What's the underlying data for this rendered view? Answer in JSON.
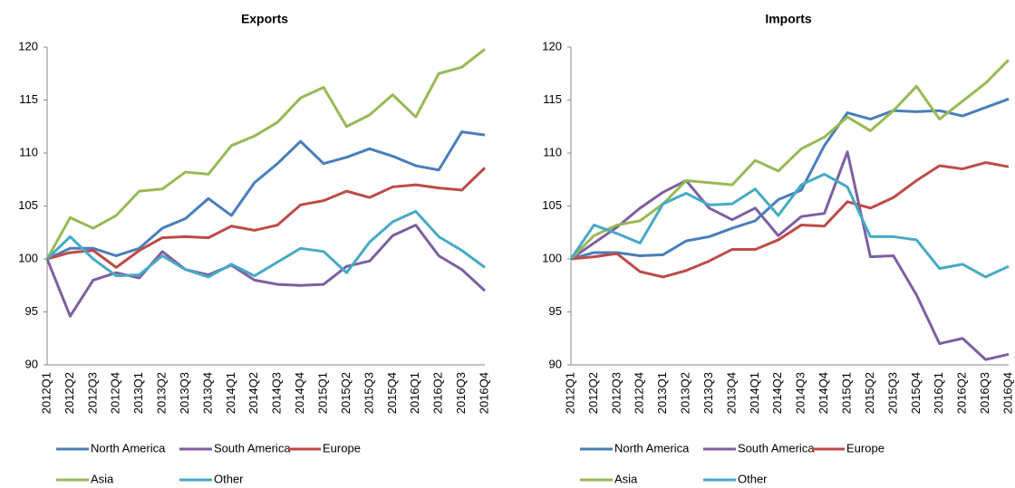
{
  "chart_data": [
    {
      "type": "line",
      "title": "Exports",
      "categories": [
        "2012Q1",
        "2012Q2",
        "2012Q3",
        "2012Q4",
        "2013Q1",
        "2013Q2",
        "2013Q3",
        "2013Q4",
        "2014Q1",
        "2014Q2",
        "2014Q3",
        "2014Q4",
        "2015Q1",
        "2015Q2",
        "2015Q3",
        "2015Q4",
        "2016Q1",
        "2016Q2",
        "2016Q3",
        "2016Q4"
      ],
      "series": [
        {
          "name": "North America",
          "color": "#4a7ebb",
          "values": [
            100,
            101,
            101,
            100.3,
            101,
            102.9,
            103.8,
            105.7,
            104.1,
            107.2,
            109,
            111.1,
            109,
            109.6,
            110.4,
            109.7,
            108.8,
            108.4,
            112,
            111.7
          ]
        },
        {
          "name": "South America",
          "color": "#7d5fa0",
          "values": [
            100,
            94.6,
            98,
            98.7,
            98.2,
            100.7,
            99,
            98.5,
            99.4,
            98,
            97.6,
            97.5,
            97.6,
            99.3,
            99.8,
            102.2,
            103.2,
            100.3,
            99,
            97
          ]
        },
        {
          "name": "Europe",
          "color": "#be4b48",
          "values": [
            100,
            100.6,
            100.8,
            99.2,
            100.8,
            102,
            102.1,
            102,
            103.1,
            102.7,
            103.2,
            105.1,
            105.5,
            106.4,
            105.8,
            106.8,
            107,
            106.7,
            106.5,
            108.6
          ]
        },
        {
          "name": "Asia",
          "color": "#98b954",
          "values": [
            100,
            103.9,
            102.9,
            104.1,
            106.4,
            106.6,
            108.2,
            108,
            110.7,
            111.6,
            112.9,
            115.2,
            116.2,
            112.5,
            113.6,
            115.5,
            113.4,
            117.5,
            118.1,
            119.8
          ]
        },
        {
          "name": "Other",
          "color": "#46aac5",
          "values": [
            100,
            102.1,
            100,
            98.4,
            98.5,
            100.3,
            99,
            98.3,
            99.5,
            98.4,
            99.7,
            101,
            100.7,
            98.7,
            101.6,
            103.5,
            104.5,
            102.1,
            100.8,
            99.2
          ]
        }
      ],
      "ylim": [
        90,
        120
      ],
      "yticks": [
        90,
        95,
        100,
        105,
        110,
        115,
        120
      ],
      "grid": false,
      "legend": "bottom"
    },
    {
      "type": "line",
      "title": "Imports",
      "categories": [
        "2012Q1",
        "2012Q2",
        "2012Q3",
        "2012Q4",
        "2013Q1",
        "2013Q2",
        "2013Q3",
        "2013Q4",
        "2014Q1",
        "2014Q2",
        "2014Q3",
        "2014Q4",
        "2015Q1",
        "2015Q2",
        "2015Q3",
        "2015Q4",
        "2016Q1",
        "2016Q2",
        "2016Q3",
        "2016Q4"
      ],
      "series": [
        {
          "name": "North America",
          "color": "#4a7ebb",
          "values": [
            100,
            100.6,
            100.6,
            100.3,
            100.4,
            101.7,
            102.1,
            102.9,
            103.6,
            105.6,
            106.5,
            110.7,
            113.8,
            113.2,
            114,
            113.9,
            114,
            113.5,
            114.3,
            115.1
          ]
        },
        {
          "name": "South America",
          "color": "#7d5fa0",
          "values": [
            100,
            101.5,
            103,
            104.8,
            106.3,
            107.4,
            104.8,
            103.7,
            104.8,
            102.2,
            104,
            104.3,
            110.1,
            100.2,
            100.3,
            96.6,
            92,
            92.5,
            90.5,
            91
          ]
        },
        {
          "name": "Europe",
          "color": "#be4b48",
          "values": [
            100,
            100.2,
            100.5,
            98.8,
            98.3,
            98.9,
            99.8,
            100.9,
            100.9,
            101.8,
            103.2,
            103.1,
            105.4,
            104.8,
            105.8,
            107.4,
            108.8,
            108.5,
            109.1,
            108.7
          ]
        },
        {
          "name": "Asia",
          "color": "#98b954",
          "values": [
            100,
            102.2,
            103.2,
            103.6,
            105.2,
            107.4,
            107.2,
            107,
            109.3,
            108.3,
            110.4,
            111.5,
            113.4,
            112.1,
            114,
            116.3,
            113.2,
            114.9,
            116.6,
            118.8
          ]
        },
        {
          "name": "Other",
          "color": "#46aac5",
          "values": [
            100,
            103.2,
            102.4,
            101.5,
            105.2,
            106.2,
            105.1,
            105.2,
            106.6,
            104.1,
            107,
            108,
            106.8,
            102.1,
            102.1,
            101.8,
            99.1,
            99.5,
            98.3,
            99.3
          ]
        }
      ],
      "ylim": [
        90,
        120
      ],
      "yticks": [
        90,
        95,
        100,
        105,
        110,
        115,
        120
      ],
      "grid": false,
      "legend": "bottom"
    }
  ]
}
